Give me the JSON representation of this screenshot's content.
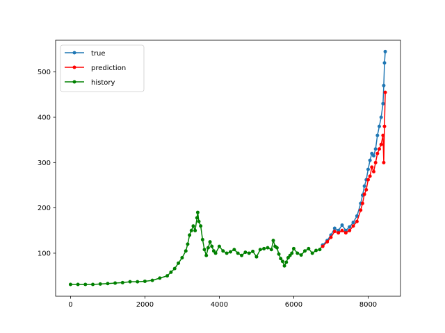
{
  "chart_data": {
    "type": "line",
    "title": "",
    "xlabel": "",
    "ylabel": "",
    "xlim": [
      -400,
      8870
    ],
    "ylim": [
      5,
      570
    ],
    "xticks": [
      0,
      2000,
      4000,
      6000,
      8000
    ],
    "yticks": [
      100,
      200,
      300,
      400,
      500
    ],
    "grid": false,
    "legend_placement": "upper-left",
    "series": [
      {
        "name": "true",
        "color": "#1f77b4",
        "x": [
          6780,
          6900,
          7000,
          7100,
          7200,
          7300,
          7400,
          7500,
          7600,
          7700,
          7800,
          7850,
          7900,
          7950,
          8000,
          8050,
          8100,
          8150,
          8200,
          8250,
          8300,
          8350,
          8400,
          8420,
          8440,
          8460
        ],
        "y": [
          118,
          128,
          140,
          155,
          150,
          162,
          150,
          158,
          168,
          182,
          210,
          228,
          248,
          262,
          285,
          305,
          320,
          315,
          330,
          360,
          380,
          400,
          430,
          470,
          520,
          545
        ]
      },
      {
        "name": "prediction",
        "color": "#ff0000",
        "x": [
          6780,
          6900,
          7000,
          7100,
          7200,
          7300,
          7400,
          7500,
          7600,
          7700,
          7800,
          7850,
          7900,
          7950,
          8000,
          8050,
          8100,
          8150,
          8200,
          8250,
          8300,
          8350,
          8400,
          8420,
          8440,
          8460
        ],
        "y": [
          115,
          125,
          135,
          148,
          145,
          150,
          145,
          150,
          160,
          170,
          195,
          210,
          230,
          240,
          262,
          270,
          290,
          280,
          300,
          320,
          330,
          340,
          360,
          300,
          380,
          455
        ]
      },
      {
        "name": "history",
        "color": "#008000",
        "x": [
          0,
          200,
          400,
          600,
          800,
          1000,
          1200,
          1400,
          1600,
          1800,
          2000,
          2200,
          2400,
          2600,
          2700,
          2800,
          2900,
          3000,
          3100,
          3150,
          3200,
          3250,
          3300,
          3350,
          3400,
          3420,
          3450,
          3500,
          3550,
          3600,
          3650,
          3700,
          3750,
          3800,
          3850,
          3900,
          4000,
          4100,
          4200,
          4300,
          4400,
          4500,
          4600,
          4700,
          4800,
          4900,
          5000,
          5100,
          5200,
          5300,
          5400,
          5450,
          5500,
          5550,
          5600,
          5650,
          5700,
          5750,
          5800,
          5850,
          5900,
          5950,
          6000,
          6100,
          6200,
          6300,
          6400,
          6500,
          6600,
          6700,
          6780
        ],
        "y": [
          31,
          31,
          31,
          31,
          32,
          33,
          34,
          35,
          37,
          37,
          38,
          40,
          45,
          50,
          58,
          66,
          78,
          90,
          105,
          120,
          140,
          150,
          160,
          150,
          178,
          190,
          170,
          160,
          130,
          108,
          95,
          112,
          125,
          115,
          105,
          100,
          115,
          105,
          100,
          103,
          108,
          100,
          95,
          102,
          100,
          104,
          92,
          108,
          110,
          112,
          108,
          128,
          115,
          112,
          98,
          88,
          82,
          72,
          80,
          90,
          95,
          100,
          110,
          100,
          96,
          105,
          110,
          100,
          106,
          108,
          118
        ]
      }
    ]
  }
}
